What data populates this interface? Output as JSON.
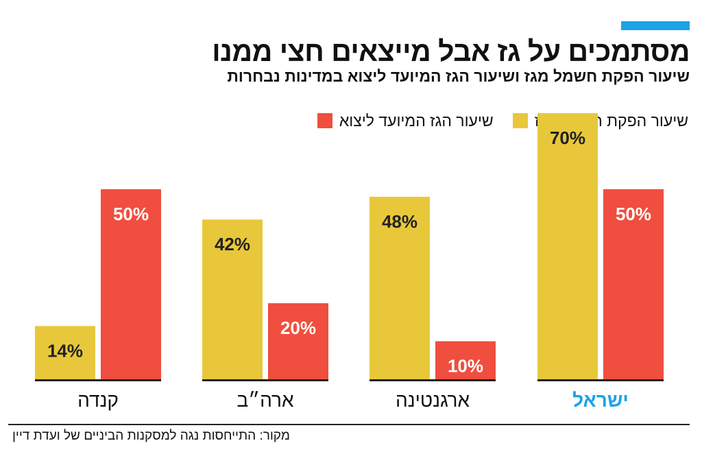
{
  "header": {
    "title": "מסתמכים על גז אבל מייצאים חצי ממנו",
    "subtitle": "שיעור הפקת חשמל מגז ושיעור הגז המיועד ליצוא במדינות נבחרות"
  },
  "chart_data": {
    "type": "bar",
    "title": "מסתמכים על גז אבל מייצאים חצי ממנו",
    "subtitle": "שיעור הפקת חשמל מגז ושיעור הגז המיועד ליצוא במדינות נבחרות",
    "categories": [
      "ישראל",
      "ארגנטינה",
      "ארה״ב",
      "קנדה"
    ],
    "highlight_category": "ישראל",
    "series": [
      {
        "name": "שיעור הפקת חשמל מגז",
        "values": [
          70,
          48,
          42,
          14
        ],
        "labels": [
          "70%",
          "48%",
          "42%",
          "14%"
        ],
        "color": "#e8c83a"
      },
      {
        "name": "שיעור הגז המיועד ליצוא",
        "values": [
          50,
          10,
          20,
          50
        ],
        "labels": [
          "50%",
          "10%",
          "20%",
          "50%"
        ],
        "color": "#f04e3e"
      }
    ],
    "ylim": [
      0,
      70
    ],
    "grid": false,
    "legend_position": "top",
    "xlabel": "",
    "ylabel": ""
  },
  "colors": {
    "accent": "#1aa3e8",
    "highlight_text": "#1aa3e8",
    "axis": "#222222",
    "bar_label": "#222222",
    "bar_label_on_dark": "#ffffff"
  },
  "footer": {
    "source": "מקור: התייחסות נגה למסקנות הביניים של ועדת דיין"
  }
}
